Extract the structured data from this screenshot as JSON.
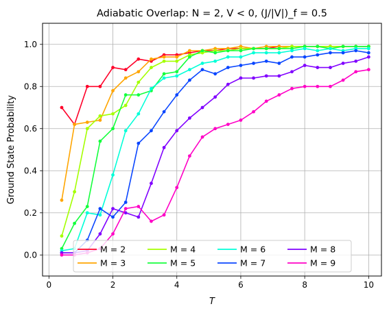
{
  "chart_data": {
    "type": "line",
    "title": "Adiabatic Overlap: N = 2, V < 0, (J/|V|)_f = 0.5",
    "xlabel": "T",
    "ylabel": "Ground State Probability",
    "xlim": [
      -0.2,
      10.4
    ],
    "ylim": [
      -0.1,
      1.1
    ],
    "xticks": [
      0,
      2,
      4,
      6,
      8,
      10
    ],
    "yticks": [
      0.0,
      0.2,
      0.4,
      0.6,
      0.8,
      1.0
    ],
    "xtick_labels": [
      "0",
      "2",
      "4",
      "6",
      "8",
      "10"
    ],
    "ytick_labels": [
      "0.0",
      "0.2",
      "0.4",
      "0.6",
      "0.8",
      "1.0"
    ],
    "grid": true,
    "legend": {
      "placement": "lower-center",
      "columns": 4
    },
    "x": [
      0.4,
      0.8,
      1.2,
      1.6,
      2.0,
      2.4,
      2.8,
      3.2,
      3.6,
      4.0,
      4.4,
      4.8,
      5.2,
      5.6,
      6.0,
      6.4,
      6.8,
      7.2,
      7.6,
      8.0,
      8.4,
      8.8,
      9.2,
      9.6,
      10.0
    ],
    "series": [
      {
        "name": "M = 2",
        "color": "#ff0029",
        "values": [
          0.7,
          0.62,
          0.8,
          0.8,
          0.89,
          0.88,
          0.93,
          0.92,
          0.95,
          0.95,
          0.96,
          0.97,
          0.97,
          0.98,
          0.98,
          0.98,
          0.98,
          0.99,
          0.99,
          0.99,
          0.99,
          0.99,
          0.99,
          0.99,
          0.99
        ]
      },
      {
        "name": "M = 3",
        "color": "#ffa500",
        "values": [
          0.26,
          0.62,
          0.63,
          0.64,
          0.78,
          0.84,
          0.87,
          0.93,
          0.94,
          0.94,
          0.97,
          0.97,
          0.98,
          0.98,
          0.99,
          0.98,
          0.99,
          0.99,
          0.99,
          0.99,
          0.99,
          0.99,
          0.99,
          0.99,
          0.99
        ]
      },
      {
        "name": "M = 4",
        "color": "#a4ff00",
        "values": [
          0.09,
          0.3,
          0.6,
          0.66,
          0.67,
          0.71,
          0.82,
          0.89,
          0.92,
          0.92,
          0.95,
          0.96,
          0.97,
          0.97,
          0.98,
          0.98,
          0.98,
          0.98,
          0.99,
          0.99,
          0.99,
          0.99,
          0.99,
          0.99,
          0.99
        ]
      },
      {
        "name": "M = 5",
        "color": "#14ff3c",
        "values": [
          0.03,
          0.15,
          0.23,
          0.54,
          0.6,
          0.76,
          0.76,
          0.78,
          0.86,
          0.87,
          0.94,
          0.97,
          0.96,
          0.97,
          0.97,
          0.98,
          0.98,
          0.98,
          0.98,
          0.99,
          0.99,
          0.98,
          0.99,
          0.99,
          0.99
        ]
      },
      {
        "name": "M = 6",
        "color": "#00ffd8",
        "values": [
          0.02,
          0.03,
          0.2,
          0.19,
          0.38,
          0.59,
          0.67,
          0.79,
          0.84,
          0.85,
          0.88,
          0.91,
          0.92,
          0.94,
          0.94,
          0.96,
          0.96,
          0.96,
          0.97,
          0.98,
          0.97,
          0.98,
          0.97,
          0.98,
          0.98
        ]
      },
      {
        "name": "M = 7",
        "color": "#0a46ff",
        "values": [
          0.01,
          0.01,
          0.07,
          0.22,
          0.18,
          0.25,
          0.53,
          0.59,
          0.68,
          0.76,
          0.83,
          0.88,
          0.86,
          0.89,
          0.9,
          0.91,
          0.92,
          0.91,
          0.94,
          0.94,
          0.95,
          0.96,
          0.96,
          0.97,
          0.96
        ]
      },
      {
        "name": "M = 8",
        "color": "#8000ff",
        "values": [
          0.01,
          0.01,
          0.02,
          0.1,
          0.22,
          0.2,
          0.18,
          0.34,
          0.51,
          0.59,
          0.65,
          0.7,
          0.75,
          0.81,
          0.84,
          0.84,
          0.85,
          0.85,
          0.87,
          0.9,
          0.89,
          0.89,
          0.91,
          0.92,
          0.94
        ]
      },
      {
        "name": "M = 9",
        "color": "#ff00c6",
        "values": [
          0.0,
          0.0,
          0.01,
          0.03,
          0.1,
          0.22,
          0.23,
          0.16,
          0.19,
          0.32,
          0.47,
          0.56,
          0.6,
          0.62,
          0.64,
          0.68,
          0.73,
          0.76,
          0.79,
          0.8,
          0.8,
          0.8,
          0.83,
          0.87,
          0.88
        ]
      }
    ]
  }
}
